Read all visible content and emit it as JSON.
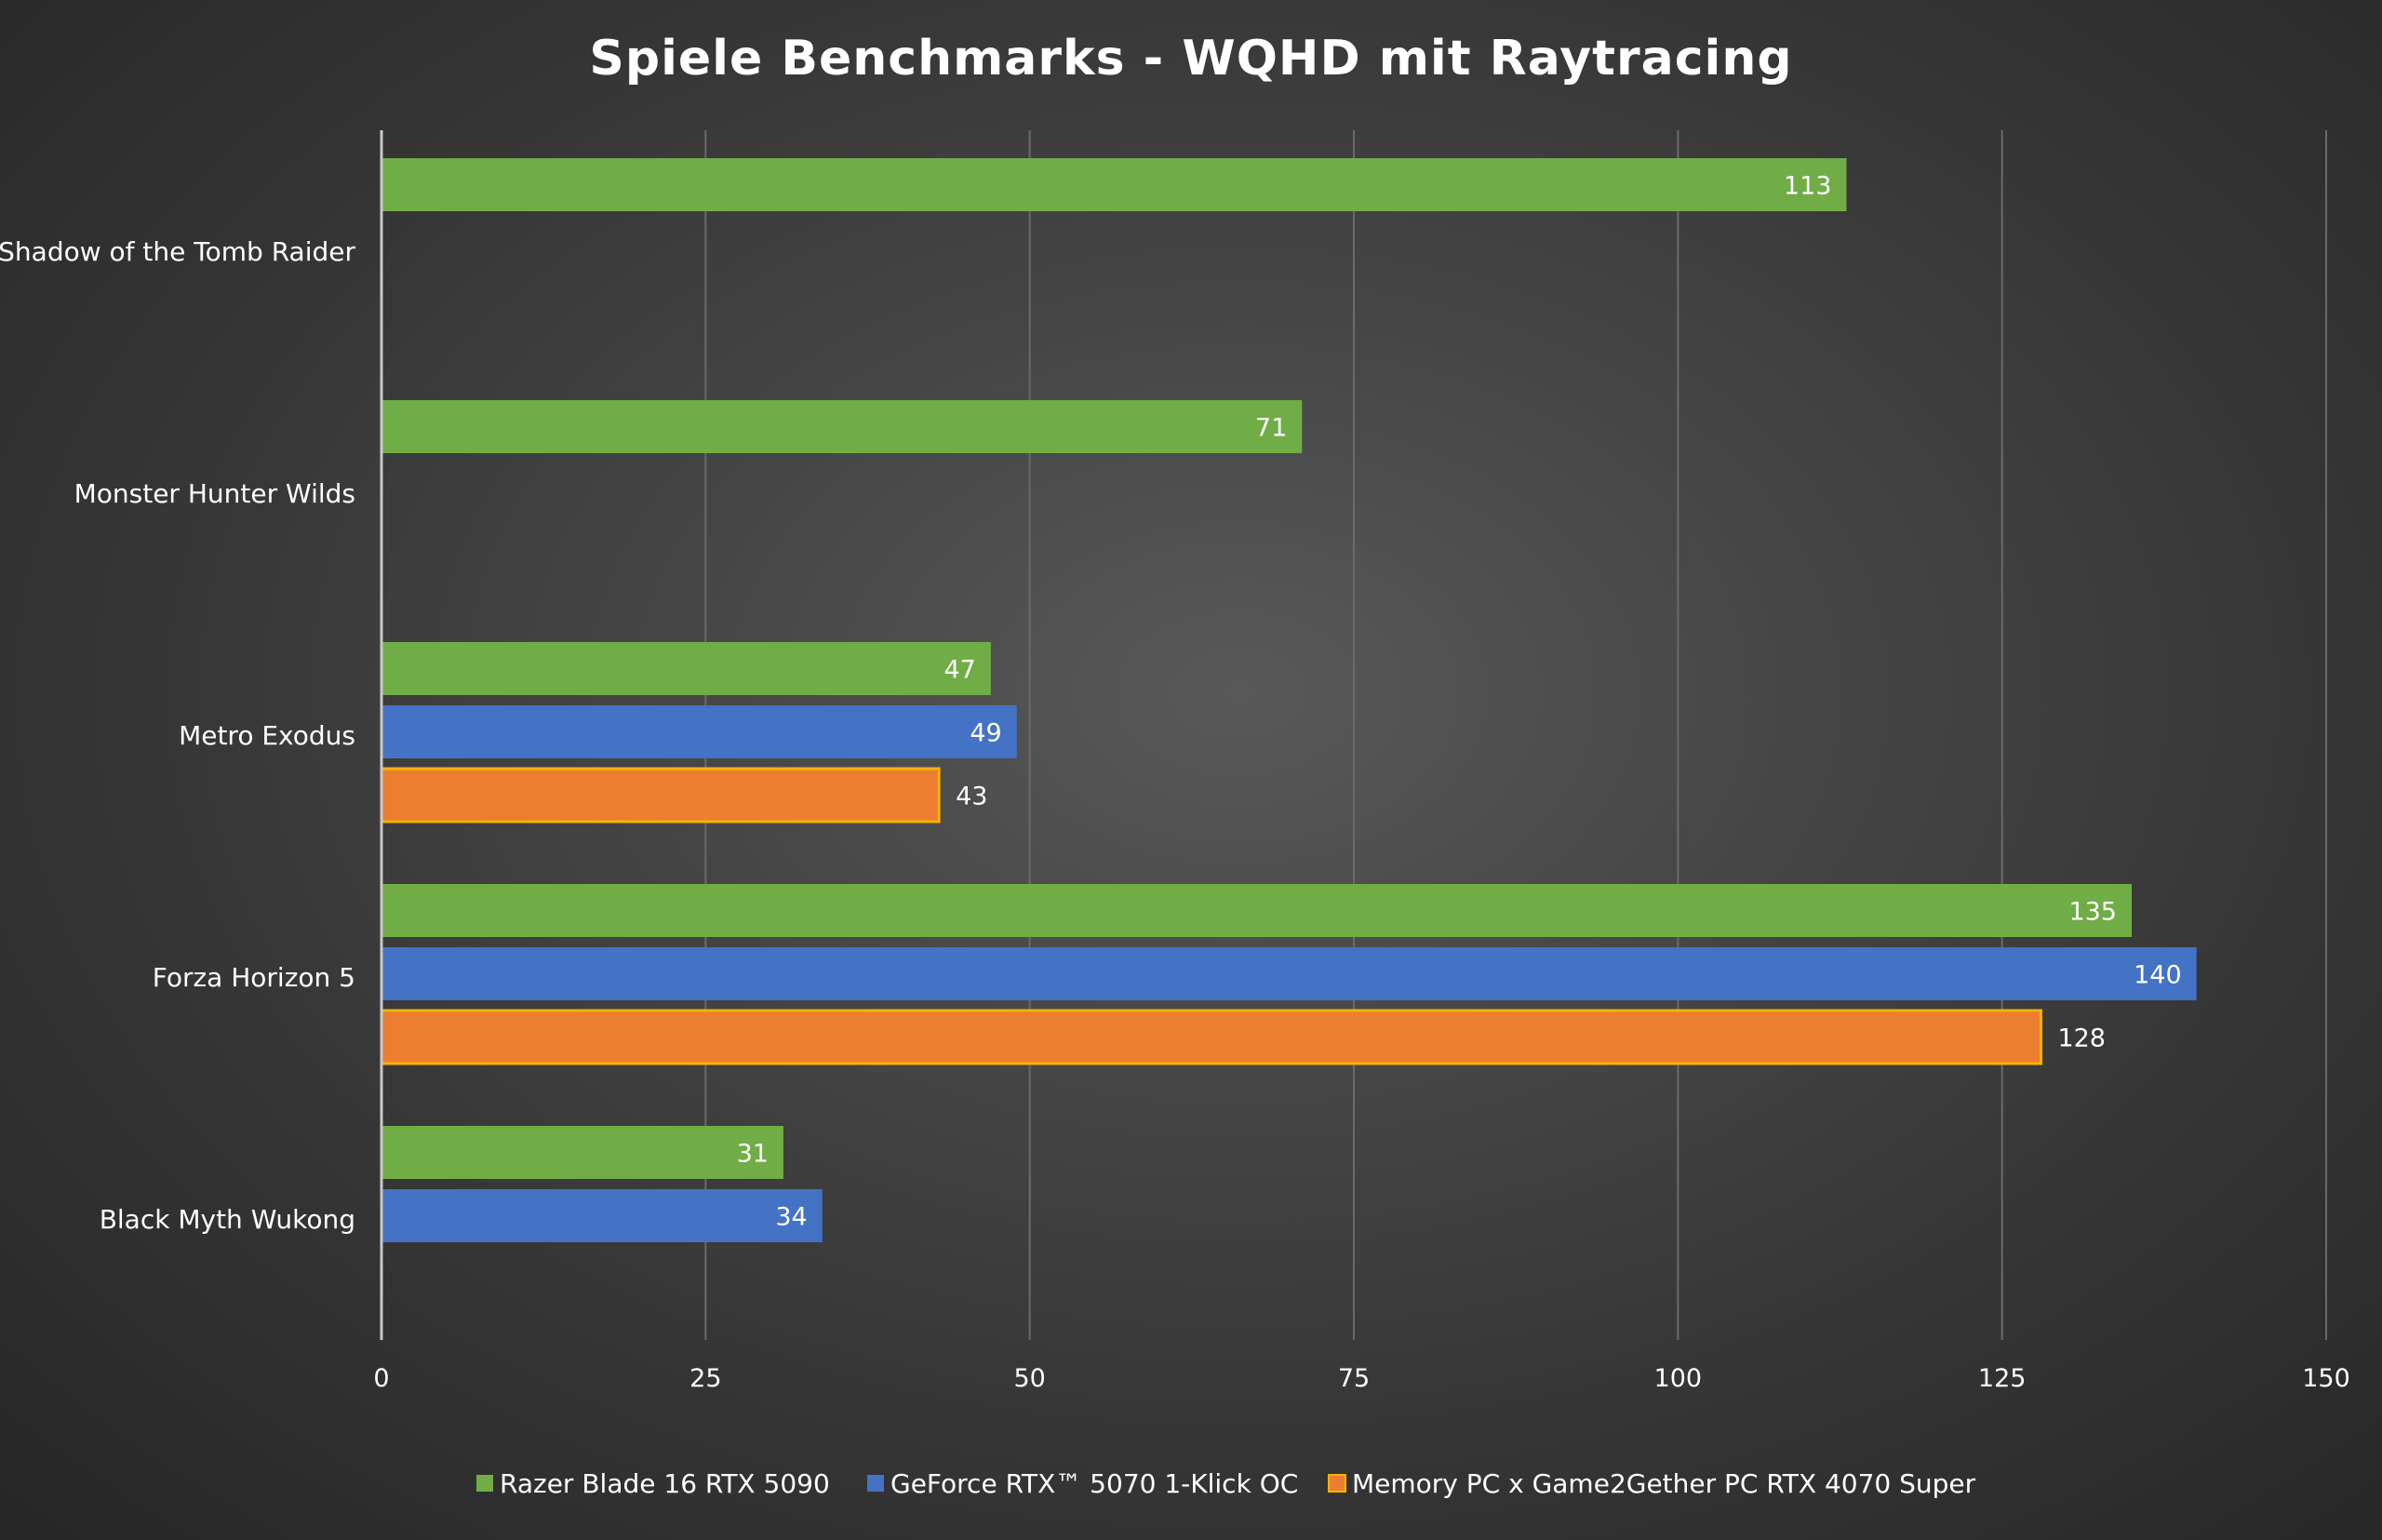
{
  "chart_data": {
    "type": "bar",
    "orientation": "horizontal",
    "title": "Spiele Benchmarks - WQHD mit Raytracing",
    "xlabel": "",
    "ylabel": "",
    "xlim": [
      0,
      150
    ],
    "x_ticks": [
      0,
      25,
      50,
      75,
      100,
      125,
      150
    ],
    "grid": true,
    "legend_position": "bottom",
    "categories": [
      "Shadow of the Tomb Raider",
      "Monster Hunter Wilds",
      "Metro Exodus",
      "Forza Horizon 5",
      "Black Myth Wukong"
    ],
    "series": [
      {
        "name": "Razer Blade 16 RTX 5090",
        "color": "#70ad47",
        "values": [
          113,
          71,
          47,
          135,
          31
        ]
      },
      {
        "name": "GeForce RTX™ 5070 1-Klick OC",
        "color": "#4472c4",
        "values": [
          null,
          null,
          49,
          140,
          34
        ]
      },
      {
        "name": "Memory PC x Game2Gether PC RTX 4070 Super",
        "color": "#ed7d31",
        "values": [
          null,
          null,
          43,
          128,
          null
        ]
      }
    ]
  }
}
